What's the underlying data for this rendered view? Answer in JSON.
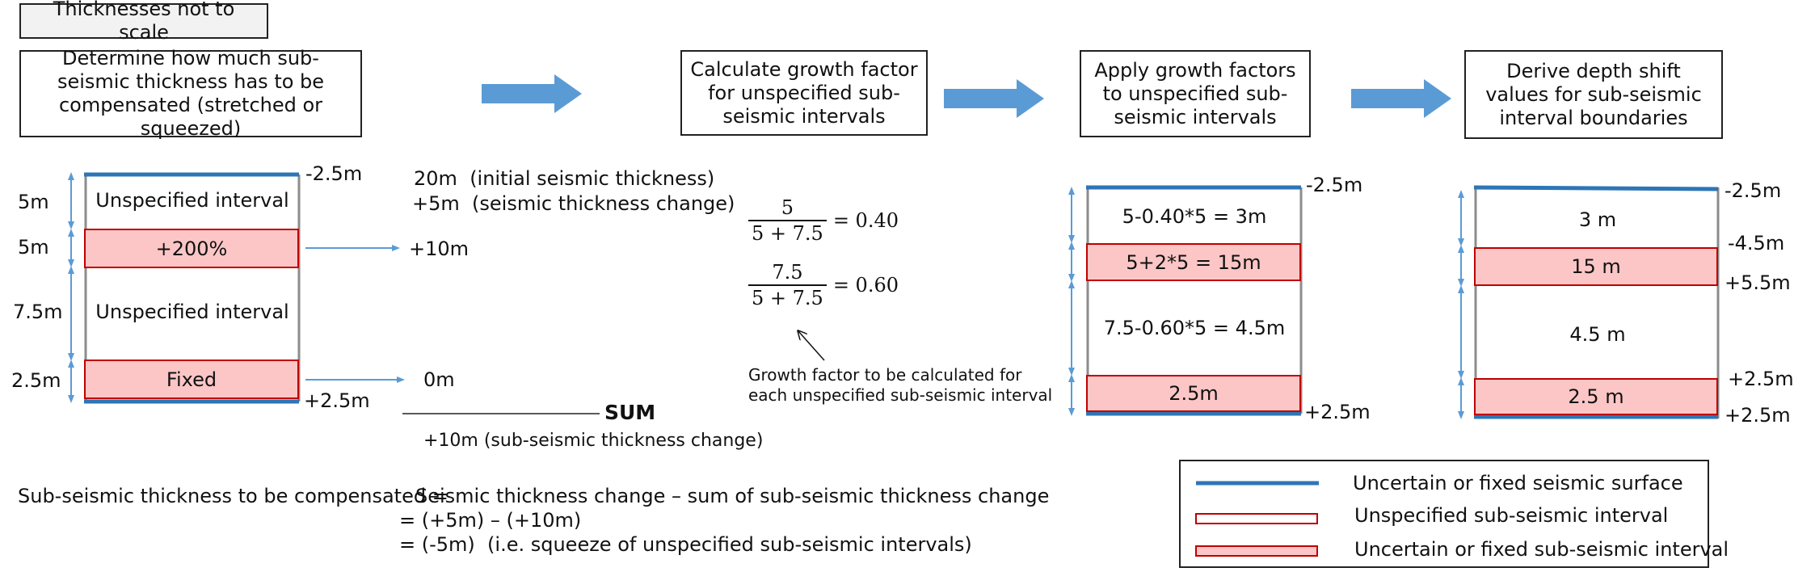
{
  "note": "Thicknesses not to scale",
  "steps": {
    "s1": "Determine how much sub-seismic thickness has to be compensated (stretched or squeezed)",
    "s2": "Calculate growth factor for unspecified sub-seismic intervals",
    "s3": "Apply growth factors to unspecified sub-seismic intervals",
    "s4": "Derive depth shift values for sub-seismic interval boundaries"
  },
  "col1": {
    "top_shift": "-2.5m",
    "bottom_shift": "+2.5m",
    "thicknesses": [
      "5m",
      "5m",
      "7.5m",
      "2.5m"
    ],
    "interval1": "Unspecified interval",
    "interval2": "+200%",
    "interval3": "Unspecified interval",
    "interval4": "Fixed",
    "out1": "+10m",
    "out2": "0m",
    "seis_thick_val": "20m",
    "seis_thick_note": "(initial seismic thickness)",
    "seis_change_val": "+5m",
    "seis_change_note": "(seismic thickness change)",
    "sum_label": "SUM",
    "sum_result": "+10m (sub-seismic thickness change)"
  },
  "col2": {
    "f1_num": "5",
    "f1_den": "5 + 7.5",
    "f1_eq": "= 0.40",
    "f2_num": "7.5",
    "f2_den": "5 + 7.5",
    "f2_eq": "= 0.60",
    "note_line1": "Growth factor to be calculated for",
    "note_line2": "each unspecified sub-seismic interval"
  },
  "col3": {
    "top_shift": "-2.5m",
    "bottom_shift": "+2.5m",
    "i1": "5-0.40*5  = 3m",
    "i2": "5+2*5  = 15m",
    "i3": "7.5-0.60*5  = 4.5m",
    "i4": "2.5m"
  },
  "col4": {
    "i1": "3 m",
    "i2": "15 m",
    "i3": "4.5 m",
    "i4": "2.5 m",
    "shifts": [
      "-2.5m",
      "-4.5m",
      "+5.5m",
      "+2.5m",
      "+2.5m"
    ]
  },
  "formula": {
    "lhs": "Sub-seismic thickness to be compensated =",
    "rhs1": "Seismic thickness change – sum of sub-seismic thickness change",
    "rhs2": "= (+5m) – (+10m)",
    "rhs3_val": "= (-5m)",
    "rhs3_note": "(i.e. squeeze of unspecified sub-seismic intervals)"
  },
  "legend": {
    "item1": "Uncertain or fixed seismic surface",
    "item2": "Unspecified sub-seismic interval",
    "item3": "Uncertain or fixed sub-seismic interval"
  },
  "colors": {
    "blue_line": "#2e75b6",
    "arrow_blue": "#5b9bd5",
    "pink_fill": "#fcc6c6",
    "red_border": "#c00000"
  }
}
